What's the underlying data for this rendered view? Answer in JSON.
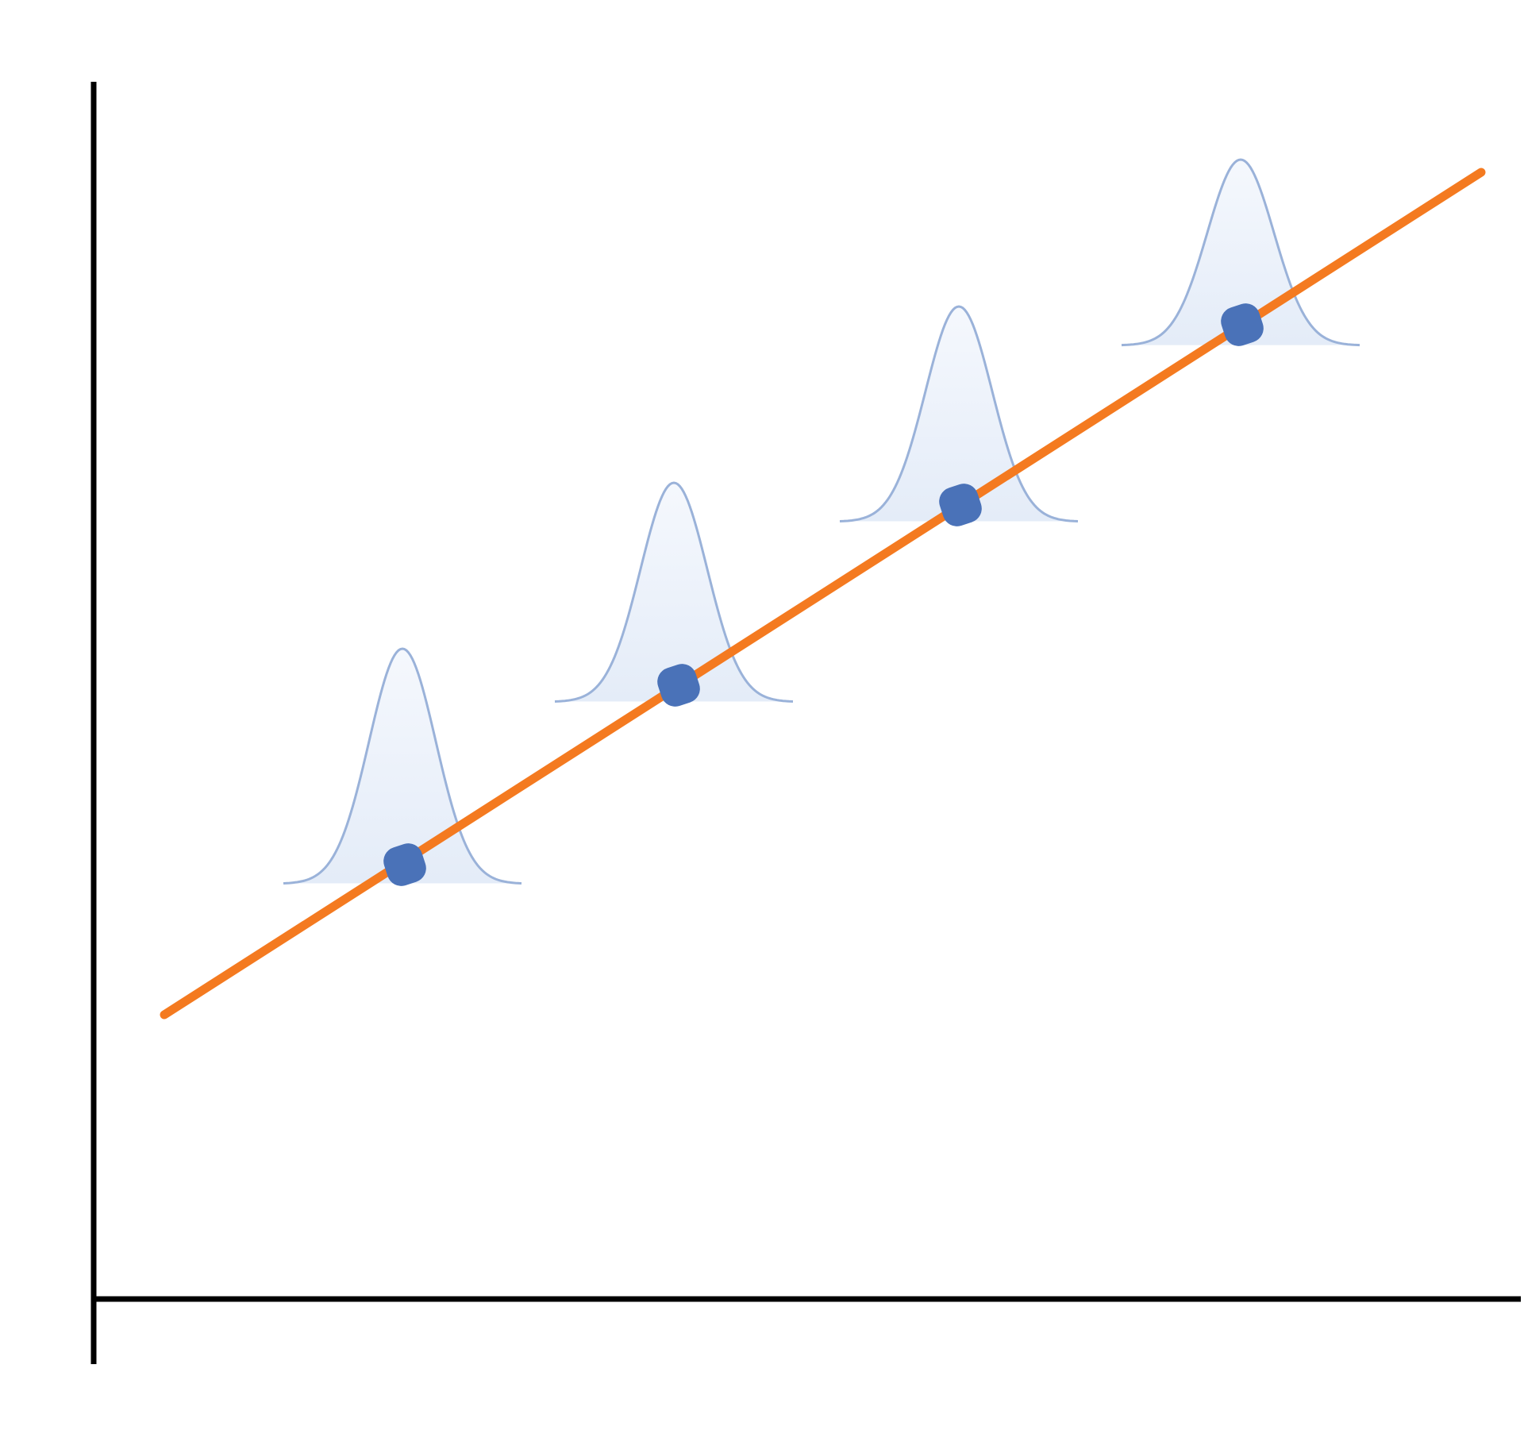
{
  "diagram": {
    "type": "regression-line-with-normal-distributions",
    "colors": {
      "axes": "#000000",
      "regression_line": "#F47A20",
      "point": "#4A72B8",
      "curve_stroke": "#9AB2D9",
      "curve_fill": "#E4ECF8"
    },
    "points": [
      {
        "name": "point-1"
      },
      {
        "name": "point-2"
      },
      {
        "name": "point-3"
      },
      {
        "name": "point-4"
      }
    ]
  }
}
